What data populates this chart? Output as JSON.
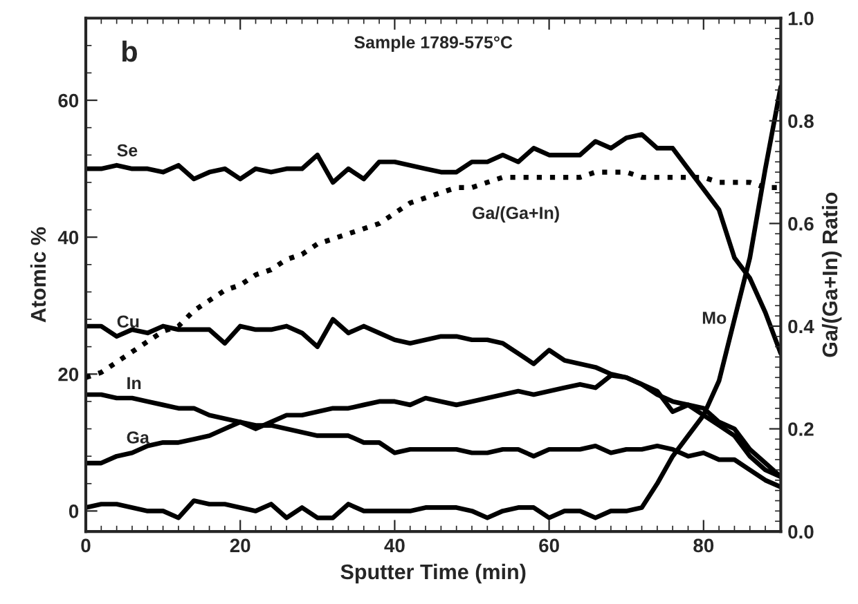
{
  "chart_data": {
    "type": "line",
    "title": "Sample 1789-575°C",
    "xlabel": "Sputter Time (min)",
    "ylabel": "Atomic %",
    "y2label": "Ga/(Ga+In) Ratio",
    "annotations": [
      "b"
    ],
    "x": [
      0,
      2,
      4,
      6,
      8,
      10,
      12,
      14,
      16,
      18,
      20,
      22,
      24,
      26,
      28,
      30,
      32,
      34,
      36,
      38,
      40,
      42,
      44,
      46,
      48,
      50,
      52,
      54,
      56,
      58,
      60,
      62,
      64,
      66,
      68,
      70,
      72,
      74,
      76,
      78,
      80,
      82,
      84,
      86,
      88,
      90
    ],
    "series": [
      {
        "name": "Se",
        "color": "#000000",
        "values": [
          50,
          50,
          50.5,
          50,
          50,
          49.5,
          50.5,
          48.5,
          49.5,
          50,
          48.5,
          50,
          49.5,
          50,
          50,
          52,
          48,
          50,
          48.5,
          51,
          51,
          50.5,
          50,
          49.5,
          49.5,
          51,
          51,
          52,
          51,
          53,
          52,
          52,
          52,
          54,
          53,
          54.5,
          55,
          53,
          53,
          50,
          47,
          44,
          37,
          34,
          29,
          23
        ]
      },
      {
        "name": "Cu",
        "color": "#000000",
        "values": [
          27,
          27,
          25.5,
          26.5,
          26,
          27,
          26.5,
          26.5,
          26.5,
          24.5,
          27,
          26.5,
          26.5,
          27,
          26,
          24,
          28,
          26,
          27,
          26,
          25,
          24.5,
          25,
          25.5,
          25.5,
          25,
          25,
          24.5,
          23,
          21.5,
          23.5,
          22,
          21.5,
          21,
          20,
          19.5,
          18.5,
          17,
          16,
          15.5,
          14,
          12.5,
          11,
          8,
          6,
          5
        ]
      },
      {
        "name": "In",
        "color": "#000000",
        "values": [
          17,
          17,
          16.5,
          16.5,
          16,
          15.5,
          15,
          15,
          14,
          13.5,
          13,
          12.5,
          12.5,
          12,
          11.5,
          11,
          11,
          11,
          10,
          10,
          8.5,
          9,
          9,
          9,
          9,
          8.5,
          8.5,
          9,
          9,
          8,
          9,
          9,
          9,
          9.5,
          8.5,
          9,
          9,
          9.5,
          9,
          8,
          8.5,
          7.5,
          7.5,
          6,
          4.5,
          3.5
        ]
      },
      {
        "name": "Ga",
        "color": "#000000",
        "values": [
          7,
          7,
          8,
          8.5,
          9.5,
          10,
          10,
          10.5,
          11,
          12,
          13,
          12,
          13,
          14,
          14,
          14.5,
          15,
          15,
          15.5,
          16,
          16,
          15.5,
          16.5,
          16,
          15.5,
          16,
          16.5,
          17,
          17.5,
          17,
          17.5,
          18,
          18.5,
          18,
          19.8,
          19.5,
          18.5,
          17.5,
          14.5,
          15.5,
          15,
          13,
          12,
          9,
          7,
          5
        ]
      },
      {
        "name": "Mo",
        "color": "#000000",
        "values": [
          0.5,
          1,
          1,
          0.5,
          0,
          0,
          -1,
          1.5,
          1,
          1,
          0.5,
          0,
          1,
          -1,
          0.5,
          -1,
          -1,
          1,
          0,
          0,
          0,
          0,
          0.5,
          0.5,
          0.5,
          0,
          -1,
          0,
          0.5,
          0.5,
          -1,
          0,
          0,
          -1,
          0,
          0,
          0.5,
          4,
          8,
          11,
          14,
          19,
          28,
          37,
          50,
          62
        ]
      },
      {
        "name": "Ga/(Ga+In)",
        "color": "#000000",
        "axis": "y2",
        "line_style": "dotted",
        "values": [
          0.3,
          0.31,
          0.33,
          0.35,
          0.37,
          0.39,
          0.4,
          0.43,
          0.45,
          0.47,
          0.48,
          0.5,
          0.51,
          0.53,
          0.54,
          0.56,
          0.57,
          0.58,
          0.59,
          0.6,
          0.62,
          0.64,
          0.65,
          0.66,
          0.67,
          0.67,
          0.68,
          0.69,
          0.69,
          0.69,
          0.69,
          0.69,
          0.69,
          0.7,
          0.7,
          0.7,
          0.69,
          0.69,
          0.69,
          0.69,
          0.69,
          0.68,
          0.68,
          0.68,
          0.67,
          0.67
        ]
      }
    ],
    "line_style": "solid",
    "marker": "none",
    "grid": false,
    "legend": false,
    "xlim": [
      0,
      90
    ],
    "xticks": [
      0,
      20,
      40,
      60,
      80
    ],
    "ylim": [
      -3,
      72
    ],
    "yticks": [
      0,
      20,
      40,
      60
    ],
    "y2lim": [
      0,
      1
    ],
    "y2ticks": [
      {
        "value": 0,
        "label": "0.0"
      },
      {
        "value": 0.2,
        "label": "0.2"
      },
      {
        "value": 0.4,
        "label": "0.4"
      },
      {
        "value": 0.6,
        "label": "0.6"
      },
      {
        "value": 0.8,
        "label": "0.8"
      },
      {
        "value": 1,
        "label": "1.0"
      }
    ]
  }
}
